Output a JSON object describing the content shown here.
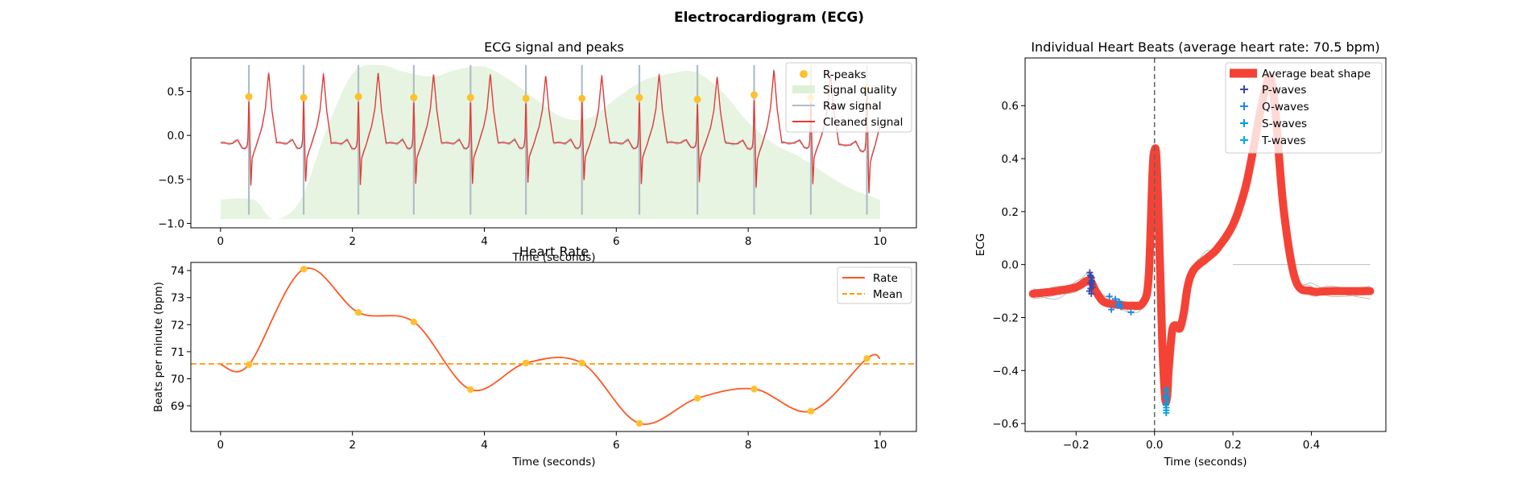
{
  "figure": {
    "suptitle": "Electrocardiogram (ECG)"
  },
  "colors": {
    "rpeak": "#FFC02C",
    "quality": "#DFF0D8",
    "raw": "#B0BEC5",
    "cleaned": "#E53935",
    "rate": "#FF5722",
    "mean": "#FF9800",
    "avgbeat": "#F44336",
    "beats": "#BDBDBD",
    "pwave": "#3949AB",
    "qwave": "#1E88E5",
    "swave": "#039BE5",
    "twave": "#03A9F4",
    "vline": "#616161"
  },
  "chart_data": [
    {
      "id": "ecg_signal",
      "type": "line",
      "title": "ECG signal and peaks",
      "xlabel": "Time (seconds)",
      "ylabel": "",
      "xlim": [
        -0.45,
        10.55
      ],
      "ylim": [
        -1.05,
        0.88
      ],
      "xticks": [
        0,
        2,
        4,
        6,
        8,
        10
      ],
      "xtick_labels": [
        "0",
        "2",
        "4",
        "6",
        "8",
        "10"
      ],
      "yticks": [
        -1.0,
        -0.5,
        0.0,
        0.5
      ],
      "ytick_labels": [
        "−1.0",
        "−0.5",
        "0.0",
        "0.5"
      ],
      "legend": {
        "placement": "upper right",
        "entries": [
          "R-peaks",
          "Signal quality",
          "Raw signal",
          "Cleaned signal"
        ]
      },
      "r_peaks": {
        "x": [
          0.43,
          1.26,
          2.09,
          2.93,
          3.79,
          4.63,
          5.48,
          6.35,
          7.23,
          8.09,
          8.95,
          9.8
        ],
        "y": [
          0.44,
          0.43,
          0.44,
          0.43,
          0.43,
          0.42,
          0.42,
          0.43,
          0.41,
          0.46,
          0.43,
          0.54
        ]
      },
      "signal_quality": {
        "x": [
          0,
          0.5,
          0.8,
          1.2,
          1.6,
          2.0,
          2.4,
          2.8,
          3.2,
          3.6,
          4.0,
          4.4,
          4.8,
          5.2,
          5.6,
          6.0,
          6.4,
          6.8,
          7.2,
          7.6,
          8.0,
          8.4,
          8.8,
          9.2,
          9.6,
          10.0
        ],
        "y": [
          -0.73,
          -0.73,
          -0.95,
          -0.75,
          0.05,
          0.7,
          0.8,
          0.72,
          0.67,
          0.75,
          0.78,
          0.62,
          0.4,
          0.2,
          0.2,
          0.42,
          0.62,
          0.7,
          0.72,
          0.5,
          0.15,
          -0.1,
          -0.25,
          -0.45,
          -0.62,
          -0.73
        ],
        "baseline": -0.95
      },
      "beat_template": {
        "t": [
          -0.5,
          -0.25,
          -0.17,
          -0.13,
          -0.1,
          -0.06,
          -0.03,
          -0.015,
          0,
          0.015,
          0.03,
          0.05,
          0.08,
          0.12,
          0.2,
          0.25,
          0.3,
          0.35,
          0.42,
          0.6
        ],
        "v": [
          -0.08,
          -0.09,
          -0.05,
          -0.1,
          -0.14,
          -0.15,
          -0.13,
          -0.05,
          0.43,
          -0.05,
          -0.55,
          -0.25,
          -0.18,
          -0.1,
          0.1,
          0.3,
          0.7,
          0.28,
          -0.08,
          -0.08
        ]
      },
      "raw_spike": {
        "high": 0.8,
        "low": -0.9
      },
      "line_end": {
        "x": 10.0,
        "y": -0.15
      }
    },
    {
      "id": "heart_rate",
      "type": "line",
      "title": "Heart Rate",
      "xlabel": "Time (seconds)",
      "ylabel": "Beats per minute (bpm)",
      "xlim": [
        -0.45,
        10.55
      ],
      "ylim": [
        68.05,
        74.3
      ],
      "xticks": [
        0,
        2,
        4,
        6,
        8,
        10
      ],
      "xtick_labels": [
        "0",
        "2",
        "4",
        "6",
        "8",
        "10"
      ],
      "yticks": [
        69,
        70,
        71,
        72,
        73,
        74
      ],
      "ytick_labels": [
        "69",
        "70",
        "71",
        "72",
        "73",
        "74"
      ],
      "legend": {
        "placement": "upper right",
        "entries": [
          "Rate",
          "Mean"
        ]
      },
      "series": [
        {
          "name": "Rate",
          "x": [
            0,
            0.43,
            1.26,
            2.09,
            2.93,
            3.79,
            4.63,
            5.48,
            6.35,
            7.23,
            8.09,
            8.95,
            9.8,
            10.0
          ],
          "y": [
            70.52,
            70.52,
            74.05,
            72.45,
            72.1,
            69.6,
            70.58,
            70.58,
            68.35,
            69.28,
            69.62,
            68.8,
            70.75,
            70.75
          ]
        }
      ],
      "markers_x": [
        0.43,
        1.26,
        2.09,
        2.93,
        3.79,
        4.63,
        5.48,
        6.35,
        7.23,
        8.09,
        8.95,
        9.8
      ],
      "markers_y": [
        70.52,
        74.05,
        72.45,
        72.1,
        69.6,
        70.58,
        70.58,
        68.35,
        69.28,
        69.62,
        68.8,
        70.75
      ],
      "mean": 70.55
    },
    {
      "id": "heart_beats",
      "type": "line",
      "title": "Individual Heart Beats (average heart rate: 70.5 bpm)",
      "xlabel": "Time (seconds)",
      "ylabel": "ECG",
      "xlim": [
        -0.33,
        0.59
      ],
      "ylim": [
        -0.63,
        0.78
      ],
      "xticks": [
        -0.2,
        0.0,
        0.2,
        0.4
      ],
      "xtick_labels": [
        "−0.2",
        "0.0",
        "0.2",
        "0.4"
      ],
      "yticks": [
        -0.6,
        -0.4,
        -0.2,
        0.0,
        0.2,
        0.4,
        0.6
      ],
      "ytick_labels": [
        "−0.6",
        "−0.4",
        "−0.2",
        "0.0",
        "0.2",
        "0.4",
        "0.6"
      ],
      "legend": {
        "placement": "upper right",
        "entries": [
          "Average beat shape",
          "P-waves",
          "Q-waves",
          "S-waves",
          "T-waves"
        ]
      },
      "average_beat": {
        "x": [
          -0.31,
          -0.25,
          -0.2,
          -0.17,
          -0.16,
          -0.15,
          -0.13,
          -0.1,
          -0.06,
          -0.03,
          -0.015,
          -0.005,
          0.0,
          0.005,
          0.012,
          0.02,
          0.027,
          0.032,
          0.036,
          0.045,
          0.055,
          0.065,
          0.075,
          0.085,
          0.1,
          0.13,
          0.16,
          0.2,
          0.23,
          0.25,
          0.27,
          0.29,
          0.3,
          0.31,
          0.33,
          0.36,
          0.4,
          0.45,
          0.55
        ],
        "y": [
          -0.11,
          -0.1,
          -0.085,
          -0.06,
          -0.07,
          -0.1,
          -0.14,
          -0.15,
          -0.155,
          -0.145,
          -0.05,
          0.35,
          0.43,
          0.4,
          0.1,
          -0.3,
          -0.5,
          -0.5,
          -0.4,
          -0.25,
          -0.23,
          -0.24,
          -0.18,
          -0.08,
          -0.02,
          0.02,
          0.06,
          0.15,
          0.28,
          0.42,
          0.58,
          0.7,
          0.68,
          0.55,
          0.2,
          -0.06,
          -0.1,
          -0.1,
          -0.1
        ]
      },
      "beat_offsets": [
        -0.03,
        -0.015,
        0.0,
        0.012,
        0.025,
        -0.02,
        0.018,
        0.008
      ],
      "flat_line": {
        "x": [
          0.2,
          0.55
        ],
        "y": [
          0.0,
          0.0
        ]
      },
      "p_waves": {
        "x": [
          -0.165,
          -0.162,
          -0.16,
          -0.163,
          -0.158,
          -0.166,
          -0.161,
          -0.16,
          -0.164,
          -0.159,
          -0.163,
          -0.16
        ],
        "y": [
          -0.03,
          -0.045,
          -0.06,
          -0.07,
          -0.085,
          -0.1,
          -0.11,
          -0.05,
          -0.04,
          -0.075,
          -0.09,
          -0.065
        ]
      },
      "q_waves": {
        "x": [
          -0.115,
          -0.1,
          -0.09,
          -0.088,
          -0.095,
          -0.085,
          -0.11,
          -0.06
        ],
        "y": [
          -0.12,
          -0.13,
          -0.14,
          -0.15,
          -0.155,
          -0.16,
          -0.17,
          -0.18
        ]
      },
      "s_waves": {
        "x": [
          0.03,
          0.03,
          0.03,
          0.032,
          0.031,
          0.029,
          0.03,
          0.03,
          0.031,
          0.03,
          0.029,
          0.03
        ],
        "y": [
          -0.47,
          -0.49,
          -0.5,
          -0.51,
          -0.52,
          -0.53,
          -0.55,
          -0.56,
          -0.48,
          -0.5,
          -0.5,
          -0.54
        ]
      },
      "t_waves": {
        "x": [],
        "y": []
      },
      "vline_x": 0.0
    }
  ]
}
